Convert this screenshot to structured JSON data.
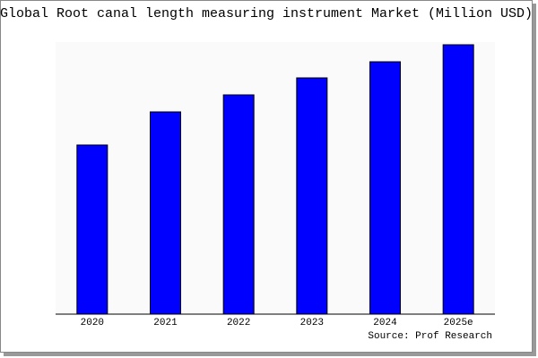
{
  "chart_data": {
    "type": "bar",
    "title": "Global Root canal length measuring instrument  Market (Million USD)",
    "categories": [
      "2020",
      "2021",
      "2022",
      "2023",
      "2024",
      "2025e"
    ],
    "values": [
      189,
      226,
      245,
      264,
      282,
      301
    ],
    "color": "#0000ff",
    "ylim": [
      0,
      304
    ],
    "source": "Source: Prof Research"
  }
}
